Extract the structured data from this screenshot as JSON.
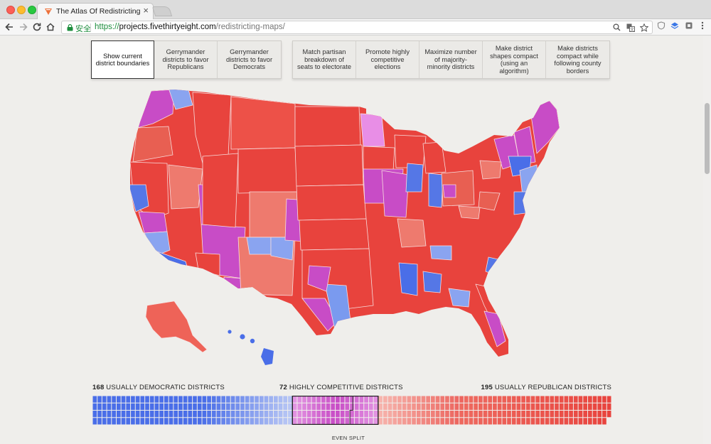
{
  "browser": {
    "tab_title": "The Atlas Of Redistricting | Fi",
    "tab_close": "×",
    "secure_label": "安全",
    "url_scheme": "https://",
    "url_host": "projects.fivethirtyeight.com",
    "url_path": "/redistricting-maps/",
    "brand_color": "#ed713a"
  },
  "map_tabs": [
    {
      "label": "Show current district boundaries",
      "active": true
    },
    {
      "label": "Gerrymander districts to favor Republicans",
      "active": false
    },
    {
      "label": "Gerrymander districts to favor Democrats",
      "active": false
    },
    {
      "label": "Match partisan breakdown of seats to electorate",
      "active": false
    },
    {
      "label": "Promote highly competitive elections",
      "active": false
    },
    {
      "label": "Maximize number of majority-minority districts",
      "active": false
    },
    {
      "label": "Make district shapes compact (using an algorithm)",
      "active": false
    },
    {
      "label": "Make districts compact while following county borders",
      "active": false
    }
  ],
  "summary": {
    "dem_count": "168",
    "dem_label": "USUALLY DEMOCRATIC DISTRICTS",
    "comp_count": "72",
    "comp_label": "HIGHLY COMPETITIVE DISTRICTS",
    "rep_count": "195",
    "rep_label": "USUALLY REPUBLICAN DISTRICTS",
    "even_split_label": "EVEN SPLIT"
  },
  "colors": {
    "democratic": "#4a6ee8",
    "competitive": "#c84cc6",
    "republican": "#e8433d"
  }
}
